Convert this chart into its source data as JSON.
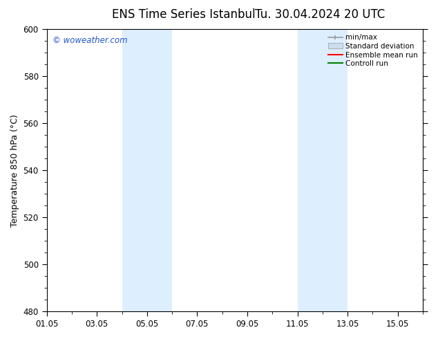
{
  "title": "ENS Time Series Istanbul",
  "title2": "Tu. 30.04.2024 20 UTC",
  "ylabel": "Temperature 850 hPa (°C)",
  "ylim": [
    480,
    600
  ],
  "yticks": [
    480,
    500,
    520,
    540,
    560,
    580,
    600
  ],
  "xtick_labels": [
    "01.05",
    "03.05",
    "05.05",
    "07.05",
    "09.05",
    "11.05",
    "13.05",
    "15.05"
  ],
  "xtick_positions": [
    0,
    2,
    4,
    6,
    8,
    10,
    12,
    14
  ],
  "shaded_bands": [
    {
      "x_start": 3.0,
      "x_end": 5.0,
      "color": "#ddeeff"
    },
    {
      "x_start": 10.0,
      "x_end": 12.0,
      "color": "#ddeeff"
    }
  ],
  "legend_items": [
    {
      "label": "min/max",
      "color": "#999999",
      "lw": 1.2,
      "style": "line_with_cap"
    },
    {
      "label": "Standard deviation",
      "color": "#ccddf0",
      "lw": 8,
      "style": "bar"
    },
    {
      "label": "Ensemble mean run",
      "color": "red",
      "lw": 1.5,
      "style": "line"
    },
    {
      "label": "Controll run",
      "color": "green",
      "lw": 1.5,
      "style": "line"
    }
  ],
  "watermark_text": "© woweather.com",
  "watermark_color": "#2255cc",
  "bg_color": "#ffffff",
  "plot_bg_color": "#ffffff",
  "border_color": "#000000",
  "title_fontsize": 12,
  "axis_fontsize": 9,
  "tick_fontsize": 8.5,
  "total_days": 15
}
